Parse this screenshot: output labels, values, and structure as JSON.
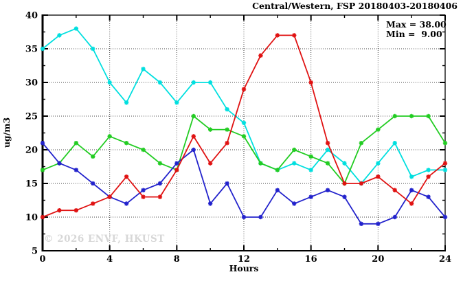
{
  "watermark": {
    "text": "© 2026 ENVF, HKUST"
  },
  "legend": {
    "max_label": "Max = 38.00",
    "min_label": "Min =  9.00"
  },
  "chart_data": {
    "type": "line",
    "title": "Central/Western, FSP 20180403-20180406",
    "xlabel": "Hours",
    "ylabel": "ug/m3",
    "xlim": [
      0,
      24
    ],
    "ylim": [
      5,
      40
    ],
    "x_major_ticks": [
      0,
      4,
      8,
      12,
      16,
      20,
      24
    ],
    "x_minor_ticks": [
      2,
      6,
      10,
      14,
      18,
      22
    ],
    "y_major_ticks": [
      5,
      10,
      15,
      20,
      25,
      30,
      35,
      40
    ],
    "y_minor_ticks": [
      7.5,
      12.5,
      17.5,
      22.5,
      27.5,
      32.5,
      37.5
    ],
    "x_gridlines": [
      4,
      8,
      12,
      16,
      20
    ],
    "y_gridlines": [
      10,
      15,
      20,
      25,
      30,
      35
    ],
    "grid": true,
    "legend_position": "top-right-inside",
    "stats": {
      "max": 38.0,
      "min": 9.0
    },
    "x": [
      0,
      1,
      2,
      3,
      4,
      5,
      6,
      7,
      8,
      9,
      10,
      11,
      12,
      13,
      14,
      15,
      16,
      17,
      18,
      19,
      20,
      21,
      22,
      23,
      24
    ],
    "series": [
      {
        "name": "series-cyan",
        "color": "#00dfdf",
        "values": [
          35,
          37,
          38,
          35,
          30,
          27,
          32,
          30,
          27,
          30,
          30,
          26,
          24,
          18,
          17,
          18,
          17,
          20,
          18,
          15,
          18,
          21,
          16,
          17,
          17
        ]
      },
      {
        "name": "series-green",
        "color": "#22cc22",
        "values": [
          17,
          18,
          21,
          19,
          22,
          21,
          20,
          18,
          17,
          25,
          23,
          23,
          22,
          18,
          17,
          20,
          19,
          18,
          15,
          21,
          23,
          25,
          25,
          25,
          21
        ]
      },
      {
        "name": "series-blue",
        "color": "#2222cc",
        "values": [
          21,
          18,
          17,
          15,
          13,
          12,
          14,
          15,
          18,
          20,
          12,
          15,
          10,
          10,
          14,
          12,
          13,
          14,
          13,
          9,
          9,
          10,
          14,
          13,
          10
        ]
      },
      {
        "name": "series-red",
        "color": "#e01212",
        "values": [
          10,
          11,
          11,
          12,
          13,
          16,
          13,
          13,
          17,
          22,
          18,
          21,
          29,
          34,
          37,
          37,
          30,
          21,
          15,
          15,
          16,
          14,
          12,
          16,
          18
        ]
      }
    ],
    "plot_colors": {
      "axis": "#000000",
      "grid_dots": "#444444",
      "background": "#ffffff"
    }
  }
}
